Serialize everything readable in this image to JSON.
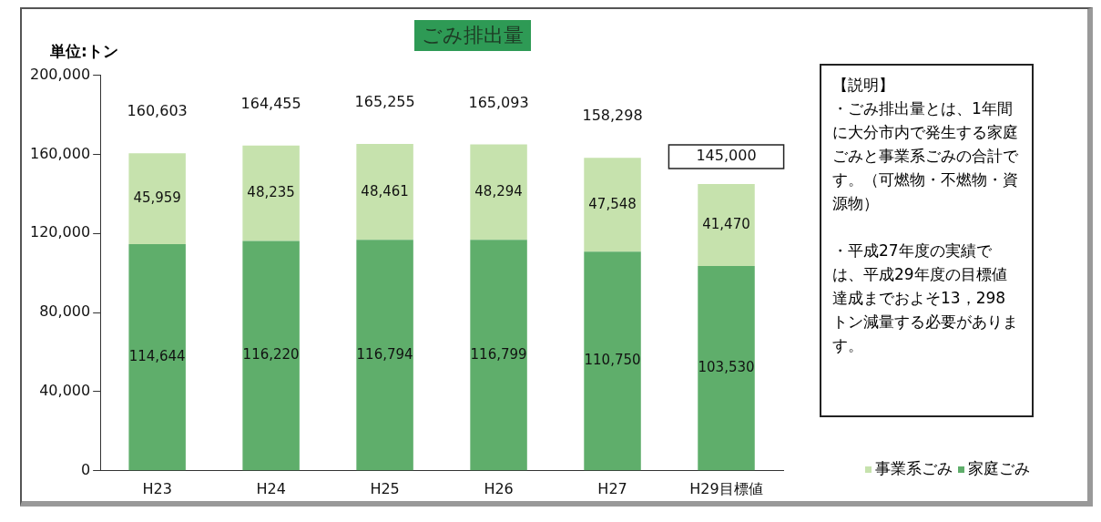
{
  "chart_data": {
    "type": "bar",
    "title": "ごみ排出量",
    "ylabel": "単位:トン",
    "categories": [
      "H23",
      "H24",
      "H25",
      "H26",
      "H27",
      "H29目標値"
    ],
    "stacked": true,
    "series": [
      {
        "name": "家庭ごみ",
        "color": "#5fae6b",
        "values": [
          114644,
          116220,
          116794,
          116799,
          110750,
          103530
        ],
        "value_labels": [
          "114,644",
          "116,220",
          "116,794",
          "116,799",
          "110,750",
          "103,530"
        ]
      },
      {
        "name": "事業系ごみ",
        "color": "#c6e2ad",
        "values": [
          45959,
          48235,
          48461,
          48294,
          47548,
          41470
        ],
        "value_labels": [
          "45,959",
          "48,235",
          "48,461",
          "48,294",
          "47,548",
          "41,470"
        ]
      }
    ],
    "totals": [
      "160,603",
      "164,455",
      "165,255",
      "165,093",
      "158,298",
      "145,000"
    ],
    "ylim": [
      0,
      200000
    ],
    "yticks": [
      {
        "value": 0,
        "label": "0"
      },
      {
        "value": 40000,
        "label": "40,000"
      },
      {
        "value": 80000,
        "label": "80,000"
      },
      {
        "value": 120000,
        "label": "120,000"
      },
      {
        "value": 160000,
        "label": "160,000"
      },
      {
        "value": 200000,
        "label": "200,000"
      }
    ],
    "grid": false,
    "legend": "bottom right",
    "annotations": [
      "【説明】",
      "・ごみ排出量とは、1年間に大分市内で発生する家庭ごみと事業系ごみの合計です。（可燃物・不燃物・資源物）",
      "・平成27年度の実績では、平成29年度の目標値達成までおよそ13，298トン減量する必要があります。"
    ]
  }
}
